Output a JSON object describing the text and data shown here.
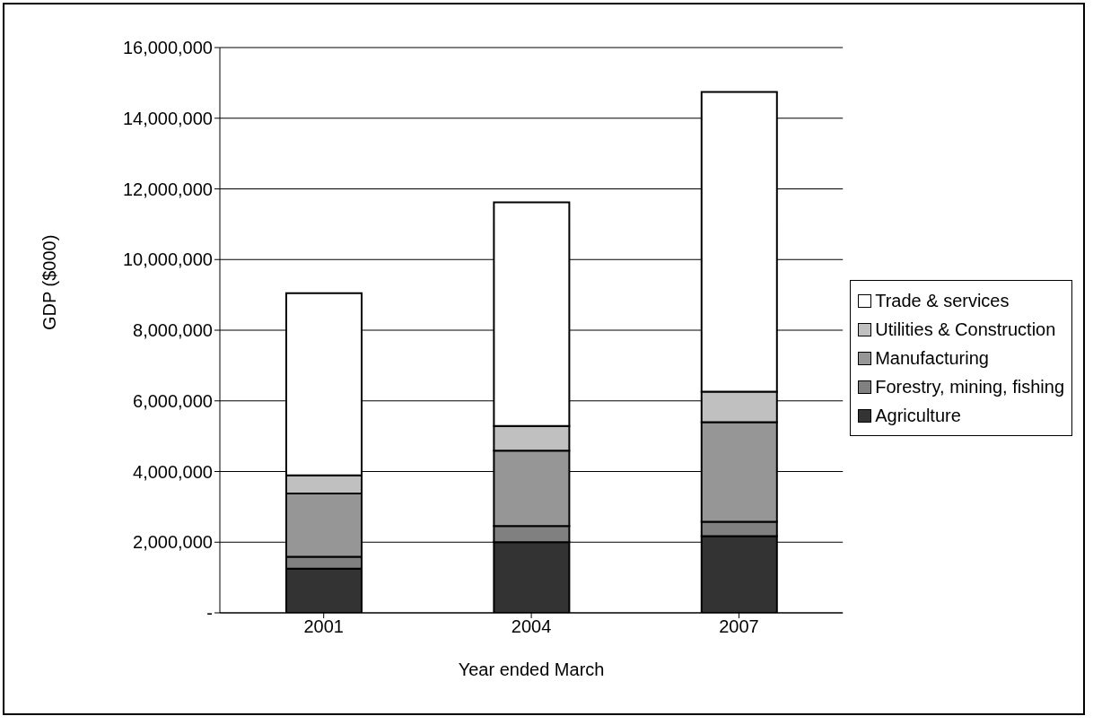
{
  "chart_data": {
    "type": "bar",
    "stacked": true,
    "xlabel": "Year ended March",
    "ylabel": "GDP ($000)",
    "categories": [
      "2001",
      "2004",
      "2007"
    ],
    "series": [
      {
        "name": "Agriculture",
        "color": "#333333",
        "values": [
          1250000,
          2000000,
          2170000
        ]
      },
      {
        "name": "Forestry, mining, fishing",
        "color": "#808080",
        "values": [
          340000,
          460000,
          410000
        ]
      },
      {
        "name": "Manufacturing",
        "color": "#969696",
        "values": [
          1790000,
          2130000,
          2820000
        ]
      },
      {
        "name": "Utilities & Construction",
        "color": "#c0c0c0",
        "values": [
          510000,
          700000,
          860000
        ]
      },
      {
        "name": "Trade & services",
        "color": "#ffffff",
        "values": [
          5160000,
          6330000,
          8480000
        ]
      }
    ],
    "ylim": [
      0,
      16000000
    ],
    "yticks": [
      {
        "value": 0,
        "label": "-"
      },
      {
        "value": 2000000,
        "label": "2,000,000"
      },
      {
        "value": 4000000,
        "label": "4,000,000"
      },
      {
        "value": 6000000,
        "label": "6,000,000"
      },
      {
        "value": 8000000,
        "label": "8,000,000"
      },
      {
        "value": 10000000,
        "label": "10,000,000"
      },
      {
        "value": 12000000,
        "label": "12,000,000"
      },
      {
        "value": 14000000,
        "label": "14,000,000"
      },
      {
        "value": 16000000,
        "label": "16,000,000"
      }
    ],
    "grid": "y",
    "legend": "right"
  }
}
